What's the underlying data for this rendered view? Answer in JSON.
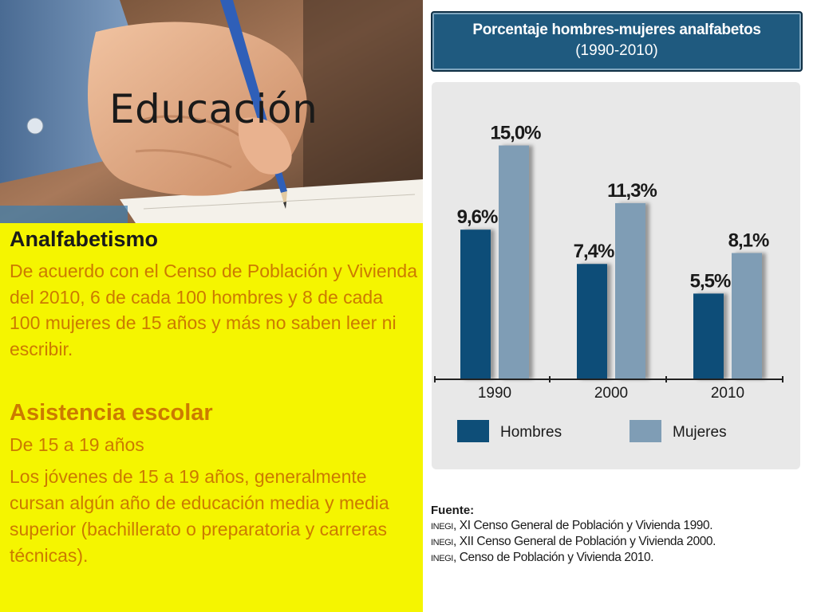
{
  "slide": {
    "title": "Educación"
  },
  "left": {
    "section1_heading": "Analfabetismo",
    "section1_text": "De acuerdo con el Censo de Población y Vivienda del 2010, 6 de cada 100 hombres y 8 de cada 100 mujeres de 15 años y más no saben leer ni escribir.",
    "section2_heading": "Asistencia escolar",
    "section2_subheading": "De 15 a 19 años",
    "section2_text": "Los jóvenes de 15 a 19 años, generalmente cursan algún año de educación media y media superior (bachillerato o preparatoria y carreras técnicas)."
  },
  "chart_data": {
    "type": "bar",
    "title": "Porcentaje hombres-mujeres analfabetos",
    "subtitle": "(1990-2010)",
    "categories": [
      "1990",
      "2000",
      "2010"
    ],
    "series": [
      {
        "name": "Hombres",
        "values": [
          9.6,
          7.4,
          5.5
        ],
        "labels": [
          "9,6%",
          "7,4%",
          "5,5%"
        ],
        "color": "#0e4e78"
      },
      {
        "name": "Mujeres",
        "values": [
          15.0,
          11.3,
          8.1
        ],
        "labels": [
          "15,0%",
          "11,3%",
          "8,1%"
        ],
        "color": "#7f9db5"
      }
    ],
    "ylim": [
      0,
      16
    ],
    "grid": false,
    "legend": "bottom"
  },
  "source": {
    "label": "Fuente:",
    "lines": [
      {
        "org": "INEGI",
        "text": ", XI Censo General de Población y Vivienda 1990."
      },
      {
        "org": "INEGI",
        "text": ", XII Censo General de Población y Vivienda 2000."
      },
      {
        "org": "INEGI",
        "text": ", Censo de Población y Vivienda 2010."
      }
    ]
  },
  "colors": {
    "background_left": "#f5f500",
    "text_orange": "#cc7a00",
    "header_blue": "#1f5a7f"
  }
}
